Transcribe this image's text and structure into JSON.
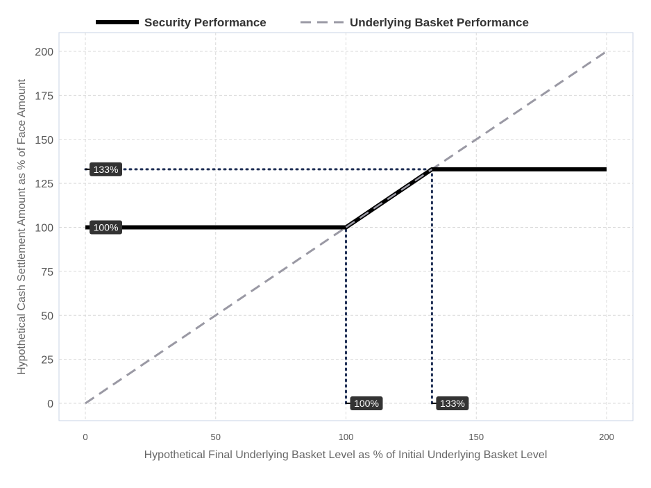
{
  "chart_data": {
    "type": "line",
    "title": "",
    "xlabel": "Hypothetical Final Underlying Basket Level as % of Initial Underlying Basket Level",
    "ylabel": "Hypothetical Cash Settlement Amount as % of Face Amount",
    "xlim": [
      -10,
      210
    ],
    "ylim": [
      -10,
      210
    ],
    "x_ticks": [
      0,
      50,
      100,
      150,
      200
    ],
    "y_ticks": [
      0,
      25,
      50,
      75,
      100,
      125,
      150,
      175,
      200
    ],
    "grid": true,
    "legend_position": "top",
    "series": [
      {
        "name": "Security Performance",
        "style": "solid",
        "color": "#000000",
        "x": [
          0,
          100,
          133,
          200
        ],
        "y": [
          100,
          100,
          133,
          133
        ]
      },
      {
        "name": "Underlying Basket Performance",
        "style": "dashed",
        "color": "#9a99a4",
        "x": [
          0,
          200
        ],
        "y": [
          0,
          200
        ]
      }
    ],
    "reference_lines": [
      {
        "from": [
          0,
          133
        ],
        "to": [
          133,
          133
        ]
      },
      {
        "from": [
          100,
          0
        ],
        "to": [
          100,
          100
        ]
      },
      {
        "from": [
          133,
          0
        ],
        "to": [
          133,
          133
        ]
      }
    ],
    "annotations": [
      {
        "text": "133%",
        "x": 0,
        "y": 133
      },
      {
        "text": "100%",
        "x": 0,
        "y": 100
      },
      {
        "text": "100%",
        "x": 100,
        "y": 0
      },
      {
        "text": "133%",
        "x": 133,
        "y": 0
      }
    ],
    "colors": {
      "reference_line": "#1f2f55",
      "label_fill": "#333333",
      "label_text": "#ffffff"
    }
  }
}
